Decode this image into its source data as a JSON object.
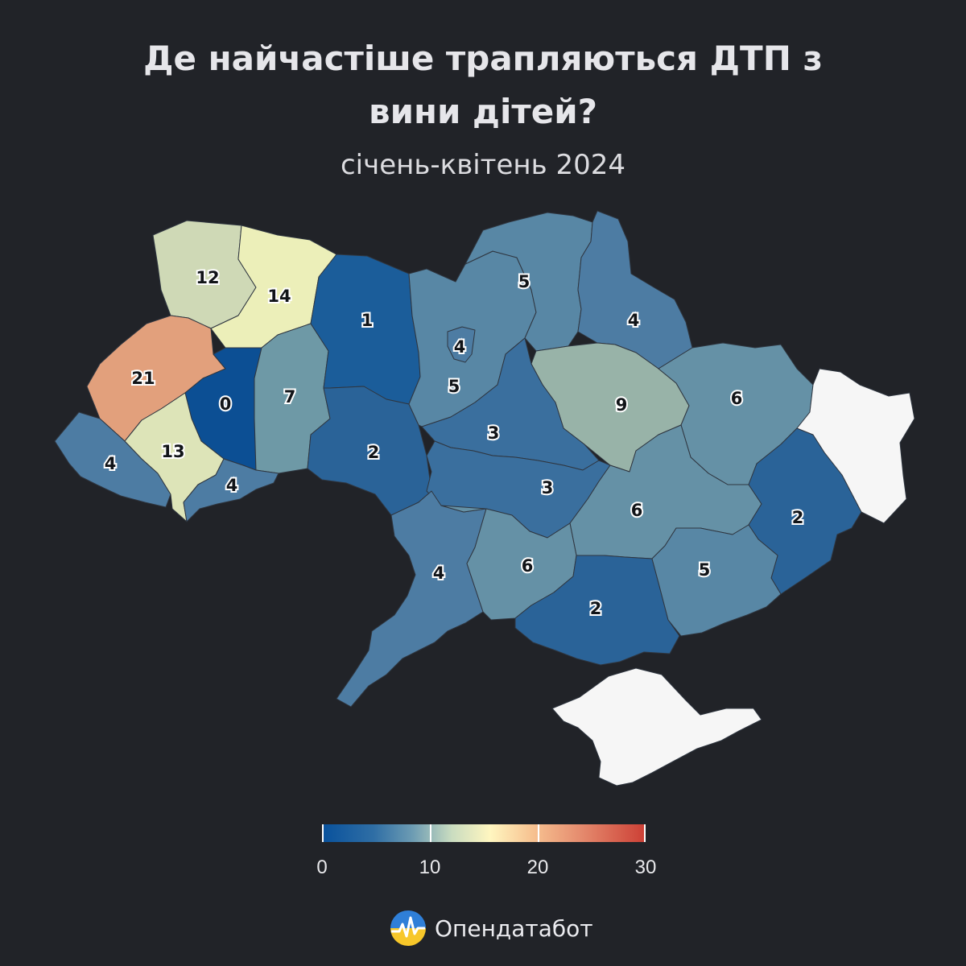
{
  "header": {
    "title_line1": "Де найчастіше трапляються ДТП з",
    "title_line2": "вини дітей?",
    "subtitle": "січень-квітень 2024"
  },
  "map": {
    "occupied_color": "#f6f6f6",
    "background_color": "#212328",
    "regions": [
      {
        "id": "volyn",
        "value": 12,
        "color": "#cfd9b6"
      },
      {
        "id": "rivne",
        "value": 14,
        "color": "#ecefb9"
      },
      {
        "id": "lviv",
        "value": 21,
        "color": "#e2a07c"
      },
      {
        "id": "ternopil",
        "value": 0,
        "color": "#0c4f94"
      },
      {
        "id": "khmelnytskyi",
        "value": 7,
        "color": "#6e99a6"
      },
      {
        "id": "zhytomyr",
        "value": 1,
        "color": "#1b5d9a"
      },
      {
        "id": "zakarpattia",
        "value": 4,
        "color": "#4d7ca3"
      },
      {
        "id": "ivano-frankivsk",
        "value": 13,
        "color": "#dde4b8"
      },
      {
        "id": "chernivtsi",
        "value": 4,
        "color": "#4d7ca3"
      },
      {
        "id": "vinnytsia",
        "value": 2,
        "color": "#2a6398"
      },
      {
        "id": "kyiv-region",
        "value": 5,
        "color": "#5887a5"
      },
      {
        "id": "kyiv-city",
        "value": 4,
        "color": "#4d7ca3"
      },
      {
        "id": "chernihiv",
        "value": 5,
        "color": "#5887a5"
      },
      {
        "id": "sumy",
        "value": 4,
        "color": "#4d7ca3"
      },
      {
        "id": "poltava",
        "value": 9,
        "color": "#98b3a8"
      },
      {
        "id": "kharkiv",
        "value": 6,
        "color": "#6591a6"
      },
      {
        "id": "cherkasy",
        "value": 3,
        "color": "#3a6f9e"
      },
      {
        "id": "kirovohrad",
        "value": 3,
        "color": "#3a6f9e"
      },
      {
        "id": "dnipropetrovsk",
        "value": 6,
        "color": "#6591a6"
      },
      {
        "id": "donetsk",
        "value": 2,
        "color": "#2a6398"
      },
      {
        "id": "luhansk",
        "value": null,
        "color": "#f6f6f6"
      },
      {
        "id": "odesa",
        "value": 4,
        "color": "#4d7ca3"
      },
      {
        "id": "mykolaiv",
        "value": 6,
        "color": "#6591a6"
      },
      {
        "id": "kherson",
        "value": 2,
        "color": "#2a6398"
      },
      {
        "id": "zaporizhzhia",
        "value": 5,
        "color": "#5887a5"
      },
      {
        "id": "crimea",
        "value": null,
        "color": "#f6f6f6"
      }
    ]
  },
  "legend": {
    "min": 0,
    "max": 30,
    "ticks": [
      "0",
      "10",
      "20",
      "30"
    ],
    "colors": [
      "#08519c",
      "#6d9cb3",
      "#fff6c0",
      "#cc3f35"
    ]
  },
  "brand": {
    "name": "Опендатабот",
    "logo_colors": [
      "#2f7fd8",
      "#f7c72a"
    ]
  }
}
